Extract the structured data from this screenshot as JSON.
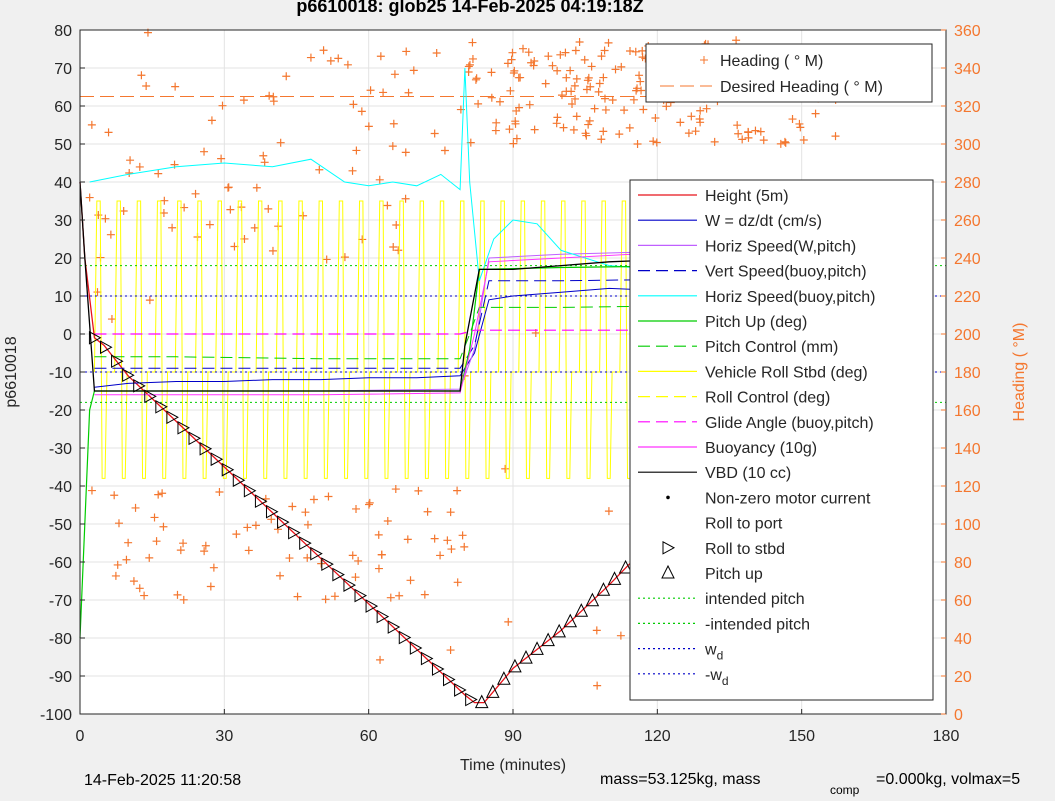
{
  "title": "p6610018: glob25 14-Feb-2025 04:19:18Z",
  "footer": {
    "timestamp": "14-Feb-2025 11:20:58",
    "mass_text": "mass=53.125kg, mass",
    "mass_sub": "comp",
    "mass_text2": "=0.000kg, volmax=5"
  },
  "colors": {
    "background": "#f0f0f0",
    "plot_bg": "#ffffff",
    "heading": "#f4772f",
    "height": "#e8131a",
    "w": "#0000c8",
    "horiz_speed_w": "#c060ff",
    "horiz_speed_buoy": "#00ffff",
    "pitch_up": "#00cc00",
    "roll": "#ffff00",
    "glide": "#ff00ff",
    "buoyancy": "#ff33ff",
    "vbd": "#000000"
  },
  "chart_data": {
    "type": "line",
    "xlabel": "Time (minutes)",
    "ylabel": "p6610018",
    "ylabel_right": "Heading (  °M)",
    "xlim": [
      0,
      180
    ],
    "ylim": [
      -100,
      80
    ],
    "ylim_right": [
      0,
      360
    ],
    "xticks": [
      0,
      30,
      60,
      90,
      120,
      150,
      180
    ],
    "yticks": [
      -100,
      -90,
      -80,
      -70,
      -60,
      -50,
      -40,
      -30,
      -20,
      -10,
      0,
      10,
      20,
      30,
      40,
      50,
      60,
      70,
      80
    ],
    "yticks_right": [
      0,
      20,
      40,
      60,
      80,
      100,
      120,
      140,
      160,
      180,
      200,
      220,
      240,
      260,
      280,
      300,
      320,
      340,
      360
    ],
    "grid": true,
    "legend_top": {
      "placement": "top-right",
      "entries": [
        "Heading (  ° M)",
        "Desired Heading (    ° M)"
      ]
    },
    "legend": {
      "placement": "right",
      "entries": [
        "Height (5m)",
        "W = dz/dt (cm/s)",
        "Horiz Speed(W,pitch)",
        "Vert Speed(buoy,pitch)",
        "Horiz Speed(buoy,pitch)",
        "Pitch Up (deg)",
        "Pitch Control (mm)",
        "Vehicle Roll Stbd (deg)",
        "Roll Control (deg)",
        "Glide Angle (buoy,pitch)",
        "Buoyancy (10g)",
        "VBD (10 cc)",
        "Non-zero motor current",
        "Roll to port",
        "Roll to stbd",
        "Pitch up",
        "intended pitch",
        "-intended pitch",
        "w",
        "-w"
      ],
      "subscripts": {
        "w": "d",
        "-w": "d"
      }
    },
    "desired_heading": 325,
    "intended_pitch": 18,
    "w_d": 10,
    "series": [
      {
        "name": "Height (5m)",
        "x": [
          0,
          1,
          3,
          5,
          10,
          20,
          30,
          40,
          50,
          60,
          70,
          80,
          82,
          84,
          90,
          100,
          110,
          120,
          130,
          140,
          150,
          158
        ],
        "y": [
          40,
          20,
          -1,
          -3,
          -11,
          -23,
          -35,
          -47,
          -59,
          -71,
          -83,
          -95,
          -97,
          -97,
          -88,
          -78,
          -66,
          -53,
          -41,
          -28,
          -15,
          0
        ]
      },
      {
        "name": "W = dz/dt (cm/s)",
        "x": [
          3,
          10,
          20,
          30,
          40,
          50,
          60,
          70,
          79,
          80,
          82,
          85,
          90,
          100,
          110,
          120,
          130,
          140,
          150,
          157
        ],
        "y": [
          -14,
          -13,
          -12.5,
          -12.5,
          -12,
          -12,
          -11.5,
          -11.5,
          -11,
          -9,
          -5,
          9,
          10,
          11,
          12,
          11.5,
          12,
          12.5,
          12.5,
          12.5
        ]
      },
      {
        "name": "Horiz Speed(W,pitch)",
        "x": [
          3,
          20,
          50,
          79,
          82,
          85,
          100,
          130,
          157
        ],
        "y": [
          -15,
          -15,
          -15,
          -14.5,
          -4,
          20,
          21,
          22,
          22
        ]
      },
      {
        "name": "Vert Speed(buoy,pitch)",
        "x": [
          3,
          20,
          50,
          79,
          82,
          85,
          100,
          130,
          157
        ],
        "y": [
          -9,
          -9,
          -9,
          -9,
          -3,
          14,
          14,
          14.5,
          14.5
        ]
      },
      {
        "name": "Horiz Speed(buoy,pitch)",
        "x": [
          2,
          10,
          20,
          30,
          40,
          48,
          55,
          60,
          65,
          70,
          75,
          79,
          80,
          81,
          83,
          86,
          90,
          95,
          100,
          110,
          120,
          130,
          140,
          150,
          157
        ],
        "y": [
          40,
          42,
          44,
          45,
          44,
          46,
          40,
          39,
          40,
          39,
          42,
          38,
          70,
          40,
          14,
          25,
          30,
          29,
          22,
          18,
          17,
          16,
          15,
          14,
          14
        ]
      },
      {
        "name": "Pitch Up (deg)",
        "x": [
          0,
          2,
          3,
          20,
          50,
          79,
          81,
          83,
          100,
          130,
          157
        ],
        "y": [
          -80,
          -20,
          -15,
          -15,
          -15,
          -15,
          -4,
          17,
          17.5,
          18,
          18
        ]
      },
      {
        "name": "Pitch Control (mm)",
        "x": [
          3,
          20,
          50,
          79,
          81,
          83,
          100,
          130,
          157
        ],
        "y": [
          -6,
          -6,
          -6.5,
          -6.5,
          0,
          7,
          7,
          7.5,
          7.5
        ]
      },
      {
        "name": "Glide Angle (buoy,pitch)",
        "x": [
          3,
          40,
          79,
          82,
          157
        ],
        "y": [
          0,
          0,
          0,
          1,
          1
        ]
      },
      {
        "name": "Buoyancy (10g)",
        "x": [
          3,
          20,
          50,
          79,
          82,
          85,
          100,
          130,
          157
        ],
        "y": [
          -16,
          -16,
          -16,
          -15.5,
          0,
          19,
          20,
          22,
          22
        ]
      },
      {
        "name": "VBD (10 cc)",
        "x": [
          0,
          1,
          3,
          20,
          50,
          79,
          80,
          83,
          90,
          100,
          110,
          130,
          157
        ],
        "y": [
          40,
          20,
          -15,
          -15,
          -15,
          -15,
          -3,
          17,
          17,
          18,
          19,
          20,
          20
        ]
      }
    ]
  }
}
